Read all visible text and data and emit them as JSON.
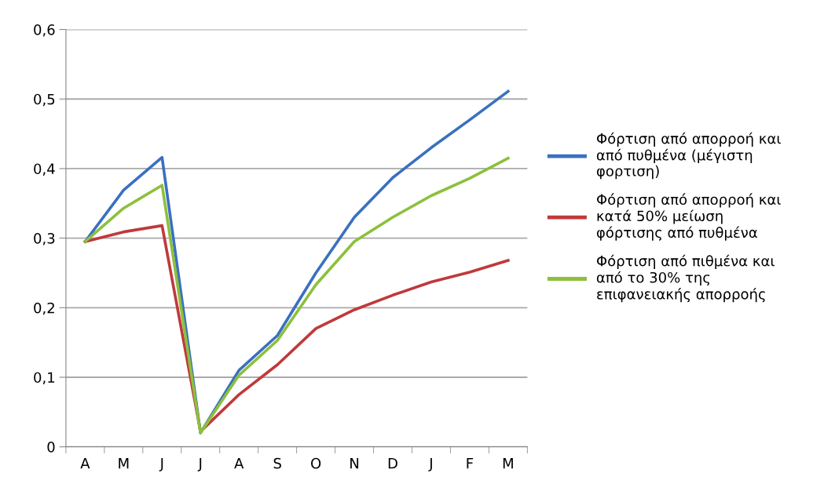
{
  "chart_data": {
    "type": "line",
    "categories": [
      "A",
      "M",
      "J",
      "J",
      "A",
      "S",
      "O",
      "N",
      "D",
      "J",
      "F",
      "M"
    ],
    "series": [
      {
        "name": "Φόρτιση από απορροή και από πυθμένα (μέγιστη φορτιση)",
        "color": "#3a70c0",
        "values": [
          0.295,
          0.369,
          0.416,
          0.02,
          0.11,
          0.16,
          0.25,
          0.33,
          0.387,
          0.43,
          0.47,
          0.511
        ]
      },
      {
        "name": "Φόρτιση από απορροή και κατά 50% μείωση φόρτισης από πυθμένα",
        "color": "#c0393b",
        "values": [
          0.295,
          0.309,
          0.318,
          0.022,
          0.075,
          0.118,
          0.17,
          0.197,
          0.218,
          0.237,
          0.251,
          0.268
        ]
      },
      {
        "name": "Φόρτιση από πιθμένα και από το 30% της επιφανειακής απορροής",
        "color": "#8cc03c",
        "values": [
          0.295,
          0.343,
          0.376,
          0.02,
          0.103,
          0.153,
          0.233,
          0.295,
          0.33,
          0.361,
          0.386,
          0.415
        ]
      }
    ],
    "ylim": [
      0,
      0.6
    ],
    "yticks": [
      {
        "value": 0,
        "label": "0"
      },
      {
        "value": 0.1,
        "label": "0,1"
      },
      {
        "value": 0.2,
        "label": "0,2"
      },
      {
        "value": 0.3,
        "label": "0,3"
      },
      {
        "value": 0.4,
        "label": "0,4"
      },
      {
        "value": 0.5,
        "label": "0,5"
      },
      {
        "value": 0.6,
        "label": "0,6"
      }
    ],
    "grid": "y",
    "legend": "right",
    "marker": "none",
    "line_style": "solid"
  }
}
